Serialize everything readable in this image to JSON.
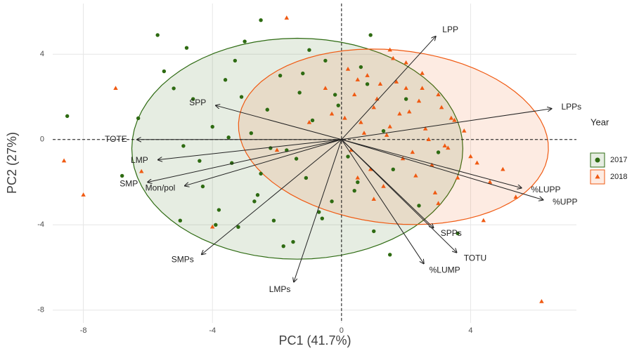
{
  "chart_data": {
    "type": "biplot",
    "x_label": "PC1 (41.7%)",
    "y_label": "PC2 (27%)",
    "xlim": [
      -8.95,
      7.28
    ],
    "ylim": [
      -8.6,
      6.38
    ],
    "xticks": [
      -8,
      -4,
      0,
      4
    ],
    "yticks": [
      -8,
      -4,
      0,
      4
    ],
    "grid": true,
    "legend_title": "Year",
    "legend_position": "right",
    "series": [
      {
        "name": "2017",
        "color": "#2e6b12",
        "marker": "circle",
        "x": [
          -8.5,
          -6.8,
          -6.3,
          -5.7,
          -5.5,
          -5.2,
          -4.9,
          -4.6,
          -4.3,
          -4.0,
          -3.8,
          -3.6,
          -3.4,
          -3.2,
          -3.0,
          -2.8,
          -2.6,
          -2.5,
          -2.3,
          -2.1,
          -1.9,
          -1.7,
          -1.5,
          -1.3,
          -1.1,
          -0.9,
          -0.7,
          -0.5,
          -0.3,
          -0.1,
          0.2,
          0.5,
          0.8,
          1.0,
          1.3,
          1.6,
          2.0,
          2.4,
          3.0,
          3.6,
          -4.8,
          -4.4,
          -3.9,
          -3.5,
          -3.1,
          -2.7,
          -2.2,
          -1.8,
          -1.4,
          -1.0,
          -0.6,
          -0.2,
          0.4,
          0.9,
          1.5,
          -2.5,
          -5.0,
          -3.3,
          -1.2,
          0.6
        ],
        "values": [
          1.1,
          -1.7,
          1.0,
          4.9,
          3.2,
          2.4,
          -0.3,
          1.9,
          -2.2,
          0.6,
          -3.3,
          2.8,
          -1.1,
          -4.1,
          4.6,
          0.3,
          -2.6,
          5.6,
          1.4,
          -3.8,
          3.0,
          -0.5,
          -4.8,
          2.2,
          -1.8,
          0.9,
          -3.4,
          3.7,
          -2.9,
          1.6,
          -0.8,
          -2.0,
          2.6,
          -4.3,
          0.4,
          -1.4,
          1.9,
          -3.1,
          -0.6,
          -4.4,
          4.3,
          -1.0,
          -4.0,
          0.1,
          2.0,
          -2.9,
          -0.4,
          -5.0,
          -0.9,
          4.2,
          -3.7,
          2.1,
          -2.4,
          4.9,
          -5.4,
          -1.6,
          -3.8,
          3.7,
          3.1,
          3.4
        ],
        "ellipse": {
          "cx": -1.37,
          "cy": -0.43,
          "rx": 5.13,
          "ry": 5.18,
          "angle": 0
        }
      },
      {
        "name": "2018",
        "color": "#f05a12",
        "marker": "triangle",
        "x": [
          -8.6,
          -8.0,
          -7.0,
          -6.2,
          -4.0,
          -1.7,
          6.2,
          4.4,
          0.2,
          0.4,
          0.6,
          0.8,
          1.0,
          1.2,
          1.4,
          1.6,
          1.8,
          2.0,
          2.2,
          2.4,
          2.6,
          2.8,
          3.0,
          3.2,
          3.4,
          3.6,
          3.8,
          4.0,
          0.1,
          0.3,
          0.5,
          0.7,
          0.9,
          1.1,
          1.3,
          1.5,
          1.7,
          1.9,
          2.1,
          2.3,
          2.5,
          2.7,
          2.9,
          3.1,
          3.3,
          3.5,
          4.2,
          4.6,
          5.0,
          5.4,
          -0.5,
          -1.0,
          -2.0,
          1.0,
          2.0,
          3.0,
          1.5,
          2.5,
          0.5,
          -0.3
        ],
        "values": [
          -1.0,
          -2.6,
          2.4,
          -1.5,
          -4.1,
          5.7,
          -7.6,
          -3.8,
          3.3,
          2.1,
          0.8,
          3.0,
          1.5,
          2.6,
          0.2,
          3.8,
          1.2,
          2.4,
          -0.6,
          1.8,
          0.5,
          -1.2,
          2.1,
          -0.3,
          1.0,
          -1.8,
          0.4,
          -0.8,
          1.0,
          -0.5,
          2.8,
          0.3,
          -1.4,
          1.9,
          -2.2,
          0.6,
          2.7,
          -0.9,
          1.3,
          -1.7,
          2.4,
          0.0,
          -2.5,
          1.5,
          -0.4,
          0.9,
          -1.1,
          -2.0,
          -1.4,
          -2.7,
          2.4,
          0.8,
          -0.5,
          -2.8,
          3.6,
          -3.0,
          4.2,
          3.1,
          -1.8,
          1.2
        ],
        "ellipse": {
          "cx": 1.61,
          "cy": 0.13,
          "rx": 4.9,
          "ry": 4.0,
          "angle": -20
        }
      }
    ],
    "loadings": [
      {
        "name": "LPP",
        "x": 2.92,
        "y": 4.84
      },
      {
        "name": "LPPs",
        "x": 6.51,
        "y": 1.45
      },
      {
        "name": "SPP",
        "x": -3.9,
        "y": 1.6
      },
      {
        "name": "TOTE",
        "x": -6.34,
        "y": 0
      },
      {
        "name": "LMP",
        "x": -5.69,
        "y": -0.95
      },
      {
        "name": "SMP",
        "x": -6.01,
        "y": -2.0
      },
      {
        "name": "Mon/pol",
        "x": -4.86,
        "y": -2.17
      },
      {
        "name": "SMPs",
        "x": -4.34,
        "y": -5.39
      },
      {
        "name": "LMPs",
        "x": -1.48,
        "y": -6.68
      },
      {
        "name": "%LUMP",
        "x": 2.55,
        "y": -5.82
      },
      {
        "name": "TOTU",
        "x": 3.57,
        "y": -5.3
      },
      {
        "name": "SPPs",
        "x": 2.85,
        "y": -4.14
      },
      {
        "name": "%LUPP",
        "x": 5.58,
        "y": -2.27
      },
      {
        "name": "%UPP",
        "x": 6.25,
        "y": -2.83
      }
    ]
  }
}
